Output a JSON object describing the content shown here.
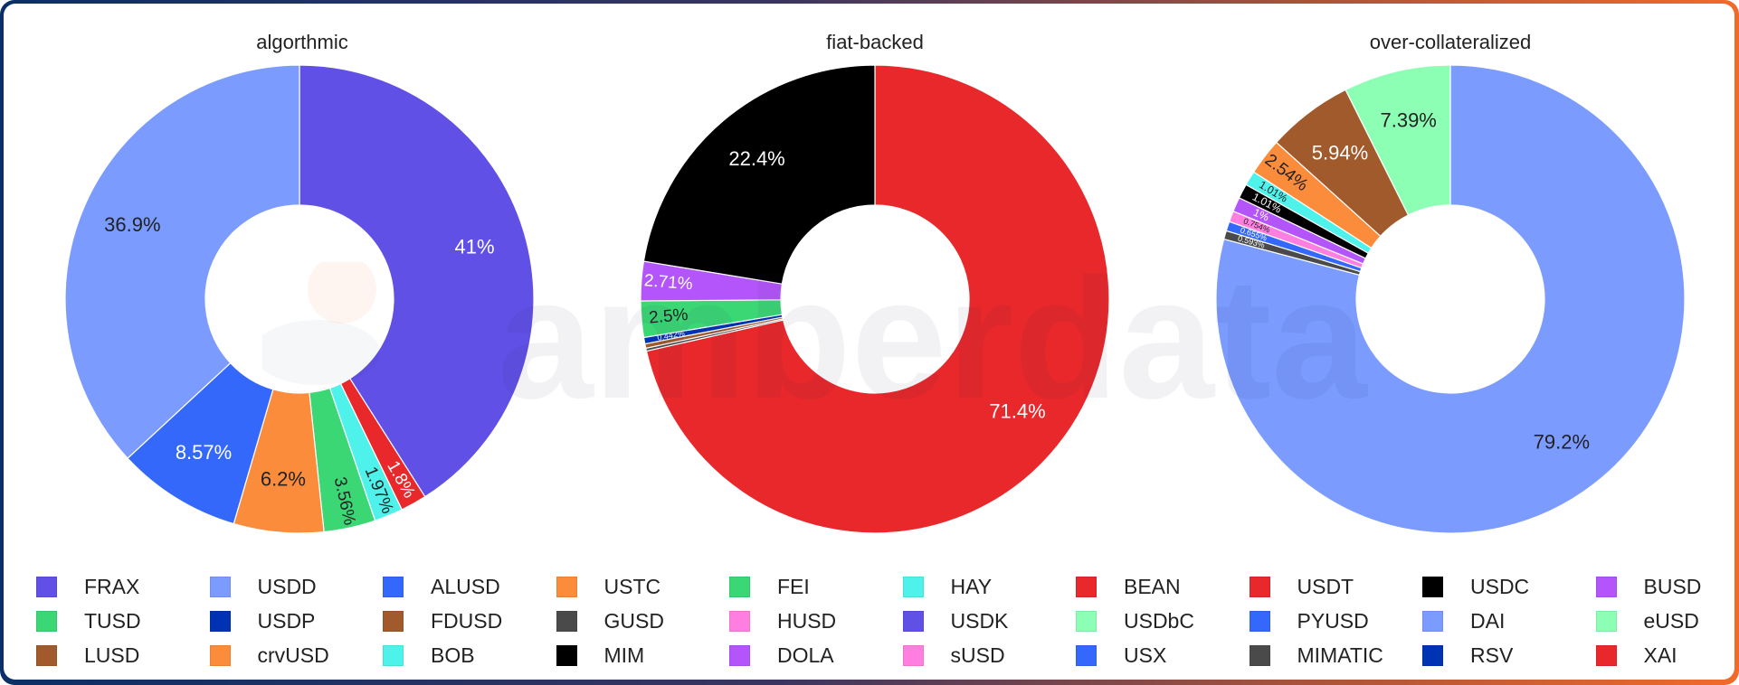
{
  "chart_data": [
    {
      "type": "pie",
      "title": "algorthmic",
      "donut": true,
      "slices": [
        {
          "label": "FRAX",
          "value": 41,
          "display": "41%",
          "color": "#6050e6"
        },
        {
          "label": "BEAN",
          "value": 1.8,
          "display": "1.8%",
          "color": "#e8282b"
        },
        {
          "label": "HAY",
          "value": 1.97,
          "display": "1.97%",
          "color": "#4ff2ea"
        },
        {
          "label": "FEI",
          "value": 3.56,
          "display": "3.56%",
          "color": "#3bd775"
        },
        {
          "label": "USTC",
          "value": 6.2,
          "display": "6.2%",
          "color": "#fb8c3c"
        },
        {
          "label": "ALUSD",
          "value": 8.57,
          "display": "8.57%",
          "color": "#3368fb"
        },
        {
          "label": "USDD",
          "value": 36.9,
          "display": "36.9%",
          "color": "#7b9bff"
        }
      ]
    },
    {
      "type": "pie",
      "title": "fiat-backed",
      "donut": true,
      "slices": [
        {
          "label": "USDT",
          "value": 71.4,
          "display": "71.4%",
          "color": "#e8282b"
        },
        {
          "label": "GUSD",
          "value": 0.2,
          "display": "",
          "color": "#4a4a4a"
        },
        {
          "label": "FDUSD",
          "value": 0.3,
          "display": "",
          "color": "#a05a2c"
        },
        {
          "label": "USDP",
          "value": 0.442,
          "display": "0.442%",
          "color": "#0032b4"
        },
        {
          "label": "TUSD",
          "value": 2.5,
          "display": "2.5%",
          "color": "#3bd775"
        },
        {
          "label": "BUSD",
          "value": 2.71,
          "display": "2.71%",
          "color": "#b455fb"
        },
        {
          "label": "USDC",
          "value": 22.4,
          "display": "22.4%",
          "color": "#000000"
        }
      ]
    },
    {
      "type": "pie",
      "title": "over-collateralized",
      "donut": true,
      "slices": [
        {
          "label": "DAI",
          "value": 79.2,
          "display": "79.2%",
          "color": "#7b9bff"
        },
        {
          "label": "MIMATIC",
          "value": 0.593,
          "display": "0.593%",
          "color": "#4a4a4a"
        },
        {
          "label": "USX",
          "value": 0.655,
          "display": "0.655%",
          "color": "#3368fb"
        },
        {
          "label": "sUSD",
          "value": 0.754,
          "display": "0.754%",
          "color": "#ff7fe0"
        },
        {
          "label": "DOLA",
          "value": 1,
          "display": "1%",
          "color": "#b455fb"
        },
        {
          "label": "MIM",
          "value": 1.01,
          "display": "1.01%",
          "color": "#000000"
        },
        {
          "label": "BOB",
          "value": 1.01,
          "display": "1.01%",
          "color": "#4ff2ea"
        },
        {
          "label": "crvUSD",
          "value": 2.54,
          "display": "2.54%",
          "color": "#fb8c3c"
        },
        {
          "label": "LUSD",
          "value": 5.94,
          "display": "5.94%",
          "color": "#a05a2c"
        },
        {
          "label": "eUSD",
          "value": 7.39,
          "display": "7.39%",
          "color": "#8cffb4"
        }
      ]
    }
  ],
  "titles": [
    "algorthmic",
    "fiat-backed",
    "over-collateralized"
  ],
  "watermark": "amberdata",
  "legend": [
    {
      "label": "FRAX",
      "color": "#6050e6"
    },
    {
      "label": "USDD",
      "color": "#7b9bff"
    },
    {
      "label": "ALUSD",
      "color": "#3368fb"
    },
    {
      "label": "USTC",
      "color": "#fb8c3c"
    },
    {
      "label": "FEI",
      "color": "#3bd775"
    },
    {
      "label": "HAY",
      "color": "#4ff2ea"
    },
    {
      "label": "BEAN",
      "color": "#e8282b"
    },
    {
      "label": "USDT",
      "color": "#e8282b"
    },
    {
      "label": "USDC",
      "color": "#000000"
    },
    {
      "label": "BUSD",
      "color": "#b455fb"
    },
    {
      "label": "TUSD",
      "color": "#3bd775"
    },
    {
      "label": "USDP",
      "color": "#0032b4"
    },
    {
      "label": "FDUSD",
      "color": "#a05a2c"
    },
    {
      "label": "GUSD",
      "color": "#4a4a4a"
    },
    {
      "label": "HUSD",
      "color": "#ff7fe0"
    },
    {
      "label": "USDK",
      "color": "#6050e6"
    },
    {
      "label": "USDbC",
      "color": "#8cffb4"
    },
    {
      "label": "PYUSD",
      "color": "#3368fb"
    },
    {
      "label": "DAI",
      "color": "#7b9bff"
    },
    {
      "label": "eUSD",
      "color": "#8cffb4"
    },
    {
      "label": "LUSD",
      "color": "#a05a2c"
    },
    {
      "label": "crvUSD",
      "color": "#fb8c3c"
    },
    {
      "label": "BOB",
      "color": "#4ff2ea"
    },
    {
      "label": "MIM",
      "color": "#000000"
    },
    {
      "label": "DOLA",
      "color": "#b455fb"
    },
    {
      "label": "sUSD",
      "color": "#ff7fe0"
    },
    {
      "label": "USX",
      "color": "#3368fb"
    },
    {
      "label": "MIMATIC",
      "color": "#4a4a4a"
    },
    {
      "label": "RSV",
      "color": "#0032b4"
    },
    {
      "label": "XAI",
      "color": "#e8282b"
    }
  ]
}
